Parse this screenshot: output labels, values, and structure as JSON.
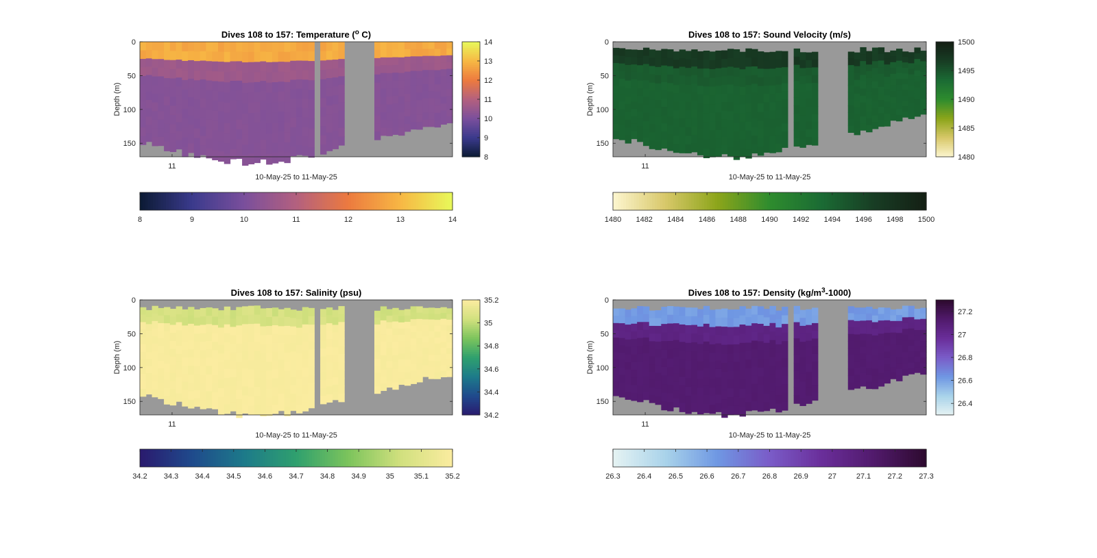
{
  "chart_data": [
    {
      "type": "heatmap",
      "title": "Dives 108 to 157: Temperature (",
      "title_sup": "o",
      "title_end": " C)",
      "xlabel": "10-May-25 to 11-May-25",
      "ylabel": "Depth (m)",
      "x_ticks": [
        "11"
      ],
      "y_ticks": [
        "0",
        "50",
        "100",
        "150"
      ],
      "ylim": [
        0,
        170
      ],
      "dives": [
        108,
        157
      ],
      "mix_base": [
        0.58,
        0.34,
        0.2,
        0.62,
        0.52
      ],
      "cbar_right": {
        "range": [
          8,
          14
        ],
        "ticks": [
          "8",
          "9",
          "10",
          "11",
          "12",
          "13",
          "14"
        ]
      },
      "cbar_bottom": {
        "range": [
          8,
          14
        ],
        "ticks": [
          "8",
          "9",
          "10",
          "11",
          "12",
          "13",
          "14"
        ]
      },
      "colormap": [
        "#0b1a33",
        "#3a3a8c",
        "#7a4f9c",
        "#b3607f",
        "#ec7a3f",
        "#f7b744",
        "#e8f95a"
      ],
      "surface_values": {
        "top": 12.8,
        "mid": 10.6,
        "deep": 10.2
      },
      "gap_color": "#999999"
    },
    {
      "type": "heatmap",
      "title": "Dives 108 to 157: Sound Velocity (m/s)",
      "xlabel": "10-May-25 to 11-May-25",
      "ylabel": "Depth (m)",
      "x_ticks": [
        "11"
      ],
      "y_ticks": [
        "0",
        "50",
        "100",
        "150"
      ],
      "ylim": [
        0,
        170
      ],
      "cbar_right": {
        "range": [
          1480,
          1500
        ],
        "ticks": [
          "1480",
          "1485",
          "1490",
          "1495",
          "1500"
        ]
      },
      "cbar_bottom": {
        "range": [
          1480,
          1500
        ],
        "ticks": [
          "1480",
          "1482",
          "1484",
          "1486",
          "1488",
          "1490",
          "1492",
          "1494",
          "1496",
          "1498",
          "1500"
        ]
      },
      "colormap": [
        "#fdf6d0",
        "#d8c86a",
        "#8ca51a",
        "#2e8c2e",
        "#1b6b34",
        "#183d24",
        "#141f14"
      ],
      "surface_values": {
        "top": 1497,
        "mid": 1494.5,
        "deep": 1494
      },
      "gap_color": "#999999"
    },
    {
      "type": "heatmap",
      "title": "Dives 108 to 157: Salinity (psu)",
      "xlabel": "10-May-25 to 11-May-25",
      "ylabel": "Depth (m)",
      "x_ticks": [
        "11"
      ],
      "y_ticks": [
        "0",
        "50",
        "100",
        "150"
      ],
      "ylim": [
        0,
        170
      ],
      "cbar_right": {
        "range": [
          34.2,
          35.2
        ],
        "ticks": [
          "34.2",
          "34.4",
          "34.6",
          "34.8",
          "35",
          "35.2"
        ]
      },
      "cbar_bottom": {
        "range": [
          34.2,
          35.2
        ],
        "ticks": [
          "34.2",
          "34.3",
          "34.4",
          "34.5",
          "34.6",
          "34.7",
          "34.8",
          "34.9",
          "35",
          "35.1",
          "35.2"
        ]
      },
      "colormap": [
        "#2a1a6e",
        "#1f4a8c",
        "#1d7a8a",
        "#2fa06e",
        "#7cc45c",
        "#d1e07e",
        "#fbeca0"
      ],
      "surface_values": {
        "top": 35.05,
        "mid": 35.19,
        "deep": 35.19
      },
      "gap_color": "#999999"
    },
    {
      "type": "heatmap",
      "title": "Dives 108 to 157: Density (kg/m",
      "title_sup": "3",
      "title_end": "-1000)",
      "xlabel": "10-May-25 to 11-May-25",
      "ylabel": "Depth (m)",
      "x_ticks": [
        "11"
      ],
      "y_ticks": [
        "0",
        "50",
        "100",
        "150"
      ],
      "ylim": [
        0,
        170
      ],
      "cbar_right": {
        "range": [
          26.3,
          27.3
        ],
        "ticks": [
          "26.4",
          "26.6",
          "26.8",
          "27",
          "27.2"
        ]
      },
      "cbar_bottom": {
        "range": [
          26.3,
          27.3
        ],
        "ticks": [
          "26.3",
          "26.4",
          "26.5",
          "26.6",
          "26.7",
          "26.8",
          "26.9",
          "27",
          "27.1",
          "27.2",
          "27.3"
        ]
      },
      "colormap": [
        "#e6f3f3",
        "#a9d3ea",
        "#6f97e3",
        "#7a5cc8",
        "#6a2e9a",
        "#511a6c",
        "#2d0a2e"
      ],
      "surface_values": {
        "top": 26.62,
        "mid": 27.05,
        "deep": 27.12
      },
      "gap_color": "#999999"
    }
  ]
}
